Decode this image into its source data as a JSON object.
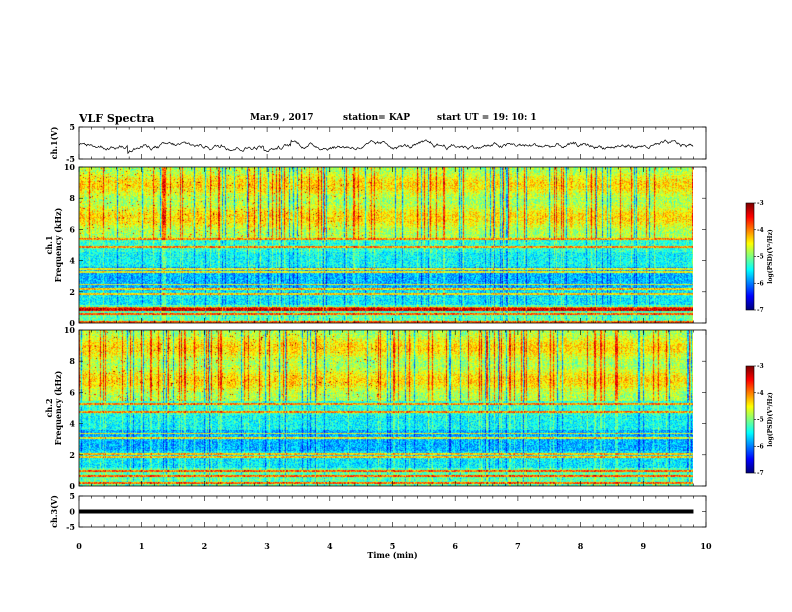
{
  "header": {
    "title": "VLF Spectra",
    "date": "Mar.9  , 2017",
    "station": "station= KAP",
    "start": "start  UT  =   19: 10: 1"
  },
  "chart_data": [
    {
      "type": "line",
      "ylabel": "ch.1(V)",
      "ylim": [
        -5,
        5
      ],
      "yticks": [
        "5",
        "-5"
      ],
      "xlim": [
        0,
        10
      ],
      "note_values": "noisy waveform around -1 V, excursions roughly between -3 and +1"
    },
    {
      "type": "heatmap",
      "ylabel": "Frequency (kHz)",
      "channel_label": "ch.1",
      "ylim": [
        0,
        10
      ],
      "yticks": [
        "0",
        "2",
        "4",
        "6",
        "8",
        "10"
      ],
      "xlim": [
        0,
        10
      ],
      "colorbar": {
        "label": "log(PSD)(V²/Hz)",
        "range": [
          -7,
          -3
        ],
        "ticks": [
          "-3",
          "-4",
          "-5",
          "-6",
          "-7"
        ]
      }
    },
    {
      "type": "heatmap",
      "ylabel": "Frequency (kHz)",
      "channel_label": "ch.2",
      "ylim": [
        0,
        10
      ],
      "yticks": [
        "0",
        "2",
        "4",
        "6",
        "8",
        "10"
      ],
      "xlim": [
        0,
        10
      ],
      "colorbar": {
        "label": "log(PSD)(V²/Hz)",
        "range": [
          -7,
          -3
        ],
        "ticks": [
          "-3",
          "-4",
          "-5",
          "-6",
          "-7"
        ]
      }
    },
    {
      "type": "line",
      "ylabel": "ch.3(V)",
      "ylim": [
        -5,
        5
      ],
      "yticks": [
        "5",
        "0",
        "-5"
      ],
      "xlim": [
        0,
        10
      ],
      "xlabel": "Time (min)",
      "xticks": [
        "0",
        "1",
        "2",
        "3",
        "4",
        "5",
        "6",
        "7",
        "8",
        "9",
        "10"
      ],
      "series": [
        {
          "x": [
            0,
            9.8
          ],
          "y": [
            0,
            0
          ]
        }
      ]
    }
  ],
  "colors": {
    "axis": "#000000",
    "line": "#000000"
  }
}
